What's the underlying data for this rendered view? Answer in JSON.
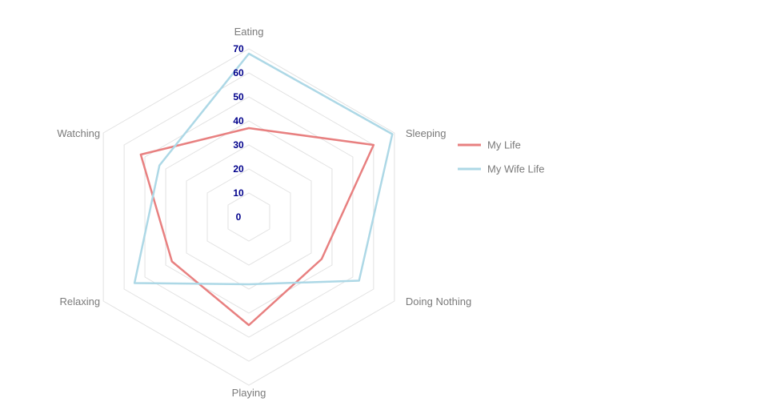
{
  "chart_data": {
    "type": "radar",
    "title": "",
    "axes": [
      "Eating",
      "Sleeping",
      "Doing Nothing",
      "Playing",
      "Relaxing",
      "Watching"
    ],
    "range": [
      0,
      70
    ],
    "ticks": [
      "0",
      "10",
      "20",
      "30",
      "40",
      "50",
      "60",
      "70"
    ],
    "grid": true,
    "legend_position": "right",
    "series": [
      {
        "name": "My Life",
        "color": "#e88080",
        "values": [
          37,
          60,
          35,
          45,
          37,
          52
        ]
      },
      {
        "name": "My Wife Life",
        "color": "#add8e6",
        "values": [
          68,
          69,
          53,
          28,
          55,
          43
        ]
      }
    ]
  }
}
